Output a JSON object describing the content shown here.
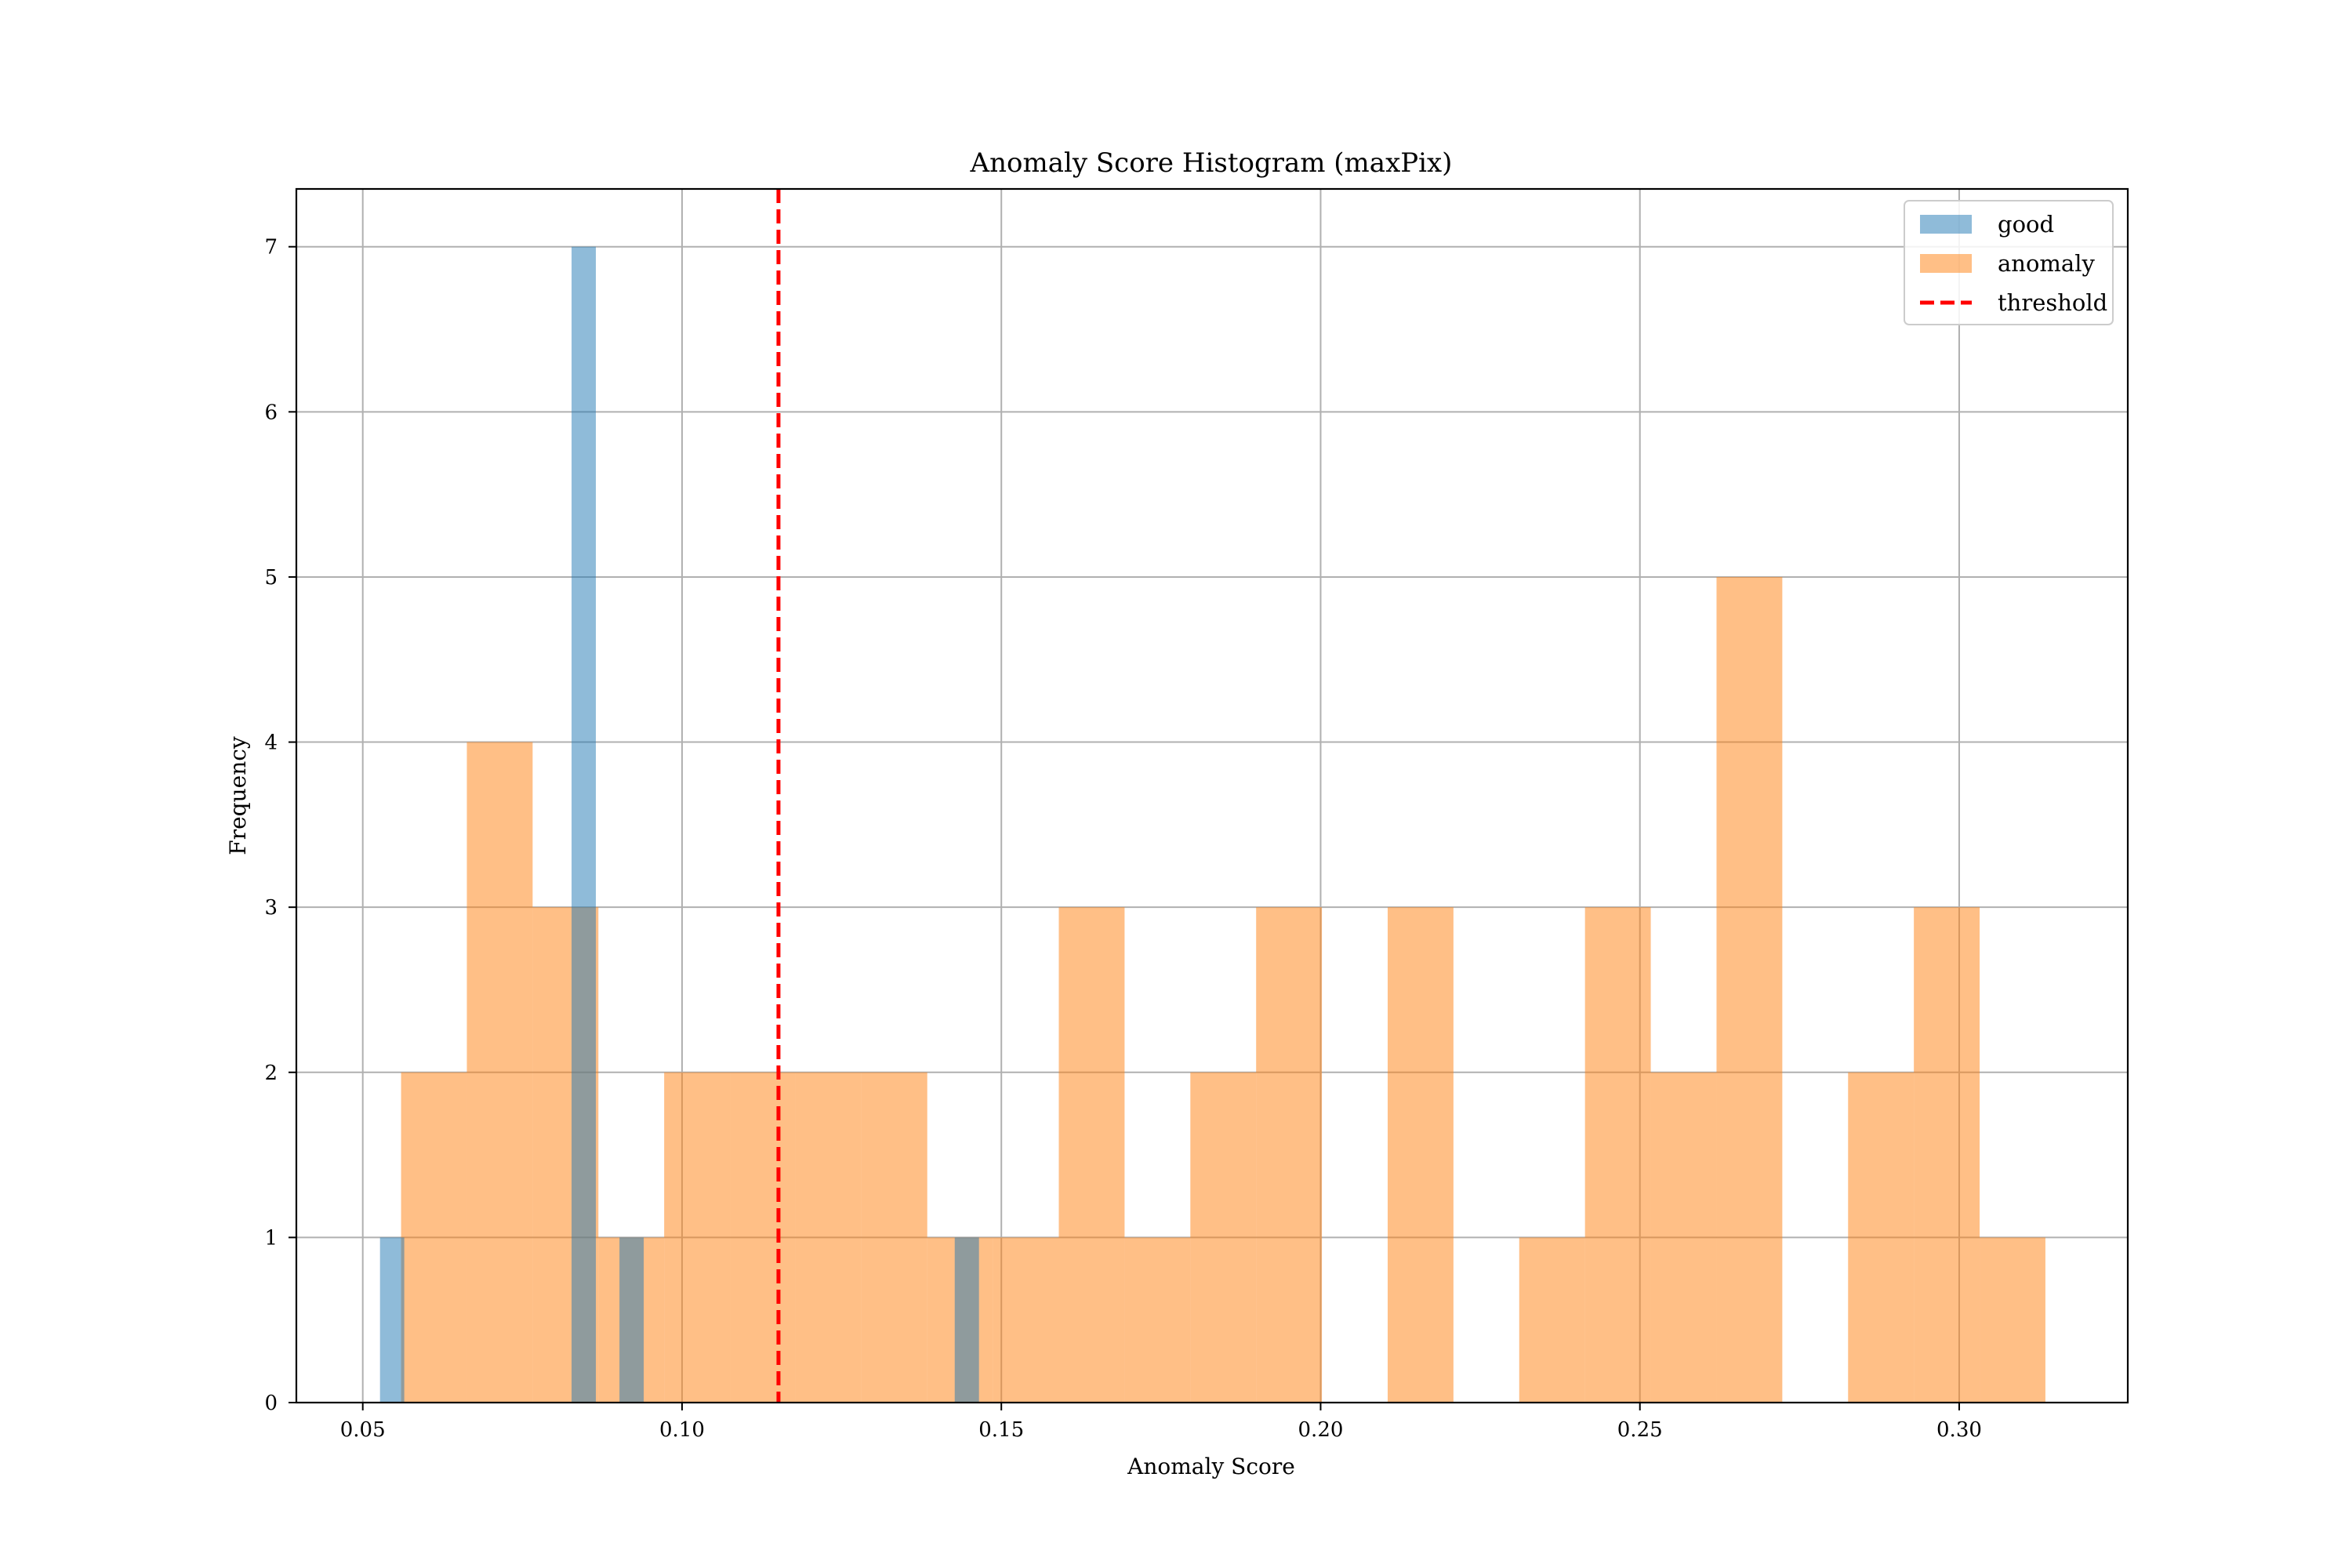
{
  "chart_data": {
    "type": "bar",
    "title": "Anomaly Score Histogram (maxPix)",
    "xlabel": "Anomaly Score",
    "ylabel": "Frequency",
    "xlim": [
      0.0396,
      0.3264
    ],
    "ylim": [
      0,
      7.35
    ],
    "grid": true,
    "legend_position": "top-right",
    "x_ticks": [
      {
        "value": 0.05,
        "label": "0.05"
      },
      {
        "value": 0.1,
        "label": "0.10"
      },
      {
        "value": 0.15,
        "label": "0.15"
      },
      {
        "value": 0.2,
        "label": "0.20"
      },
      {
        "value": 0.25,
        "label": "0.25"
      },
      {
        "value": 0.3,
        "label": "0.30"
      }
    ],
    "y_ticks": [
      {
        "value": 0,
        "label": "0"
      },
      {
        "value": 1,
        "label": "1"
      },
      {
        "value": 2,
        "label": "2"
      },
      {
        "value": 3,
        "label": "3"
      },
      {
        "value": 4,
        "label": "4"
      },
      {
        "value": 5,
        "label": "5"
      },
      {
        "value": 6,
        "label": "6"
      },
      {
        "value": 7,
        "label": "7"
      }
    ],
    "series": [
      {
        "name": "anomaly",
        "kind": "histogram",
        "color": "#ff7f0e",
        "opacity": 0.5,
        "bins": [
          {
            "x0": 0.056,
            "x1": 0.0663,
            "count": 2
          },
          {
            "x0": 0.0663,
            "x1": 0.0766,
            "count": 4
          },
          {
            "x0": 0.0766,
            "x1": 0.0869,
            "count": 3
          },
          {
            "x0": 0.0869,
            "x1": 0.0972,
            "count": 1
          },
          {
            "x0": 0.0972,
            "x1": 0.1075,
            "count": 2
          },
          {
            "x0": 0.1075,
            "x1": 0.1178,
            "count": 2
          },
          {
            "x0": 0.1178,
            "x1": 0.1281,
            "count": 2
          },
          {
            "x0": 0.1281,
            "x1": 0.1384,
            "count": 2
          },
          {
            "x0": 0.1384,
            "x1": 0.1487,
            "count": 1
          },
          {
            "x0": 0.1487,
            "x1": 0.159,
            "count": 1
          },
          {
            "x0": 0.159,
            "x1": 0.1693,
            "count": 3
          },
          {
            "x0": 0.1693,
            "x1": 0.1796,
            "count": 1
          },
          {
            "x0": 0.1796,
            "x1": 0.1899,
            "count": 2
          },
          {
            "x0": 0.1899,
            "x1": 0.2002,
            "count": 3
          },
          {
            "x0": 0.2002,
            "x1": 0.2105,
            "count": 0
          },
          {
            "x0": 0.2105,
            "x1": 0.2208,
            "count": 3
          },
          {
            "x0": 0.2208,
            "x1": 0.2311,
            "count": 0
          },
          {
            "x0": 0.2311,
            "x1": 0.2414,
            "count": 1
          },
          {
            "x0": 0.2414,
            "x1": 0.2517,
            "count": 3
          },
          {
            "x0": 0.2517,
            "x1": 0.262,
            "count": 2
          },
          {
            "x0": 0.262,
            "x1": 0.2723,
            "count": 5
          },
          {
            "x0": 0.2723,
            "x1": 0.2826,
            "count": 0
          },
          {
            "x0": 0.2826,
            "x1": 0.2929,
            "count": 2
          },
          {
            "x0": 0.2929,
            "x1": 0.3032,
            "count": 3
          },
          {
            "x0": 0.3032,
            "x1": 0.3135,
            "count": 1
          }
        ]
      },
      {
        "name": "good",
        "kind": "histogram",
        "color": "#1f77b4",
        "opacity": 0.5,
        "bins": [
          {
            "x0": 0.0527,
            "x1": 0.0565,
            "count": 1
          },
          {
            "x0": 0.0565,
            "x1": 0.0827,
            "count": 0
          },
          {
            "x0": 0.0827,
            "x1": 0.0865,
            "count": 7
          },
          {
            "x0": 0.0865,
            "x1": 0.0902,
            "count": 0
          },
          {
            "x0": 0.0902,
            "x1": 0.094,
            "count": 1
          },
          {
            "x0": 0.094,
            "x1": 0.1427,
            "count": 0
          },
          {
            "x0": 0.1427,
            "x1": 0.1465,
            "count": 1
          }
        ]
      },
      {
        "name": "threshold",
        "kind": "vline",
        "color": "#ff0000",
        "linestyle": "dashed",
        "x": 0.1151
      }
    ],
    "legend": [
      {
        "label": "good",
        "kind": "patch",
        "color": "#1f77b4"
      },
      {
        "label": "anomaly",
        "kind": "patch",
        "color": "#ff7f0e"
      },
      {
        "label": "threshold",
        "kind": "line",
        "color": "#ff0000"
      }
    ]
  }
}
